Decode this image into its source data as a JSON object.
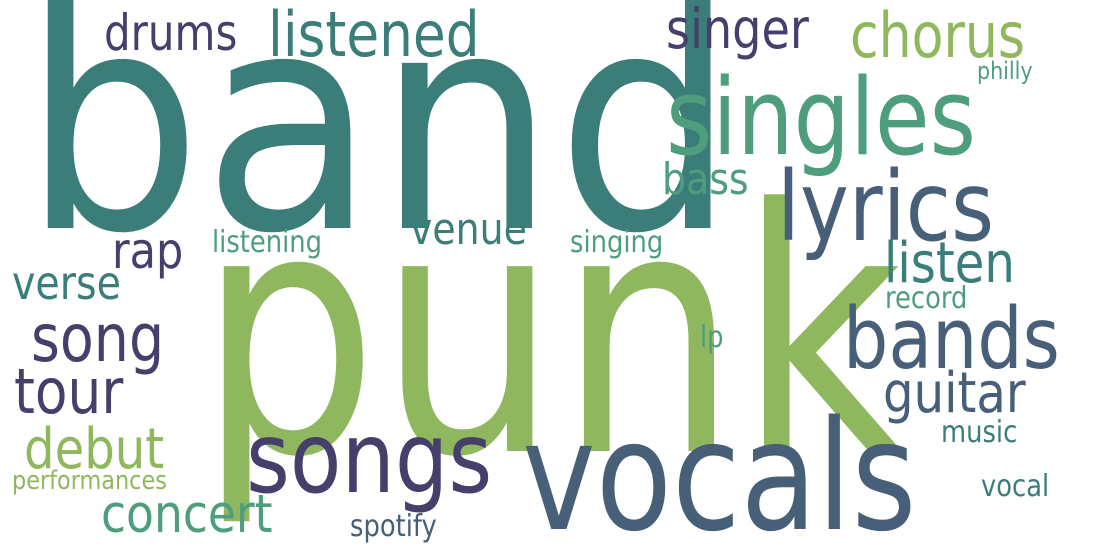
{
  "colors": {
    "teal": "#3b7d78",
    "green": "#8fb85e",
    "slate": "#475f78",
    "purple": "#463f6b",
    "mint": "#4e9e7d",
    "sage": "#7fb06b",
    "background": "#ffffff"
  },
  "words": {
    "band": {
      "text": "band",
      "color": "#3b7d78"
    },
    "punk": {
      "text": "punk",
      "color": "#8fb85e"
    },
    "vocals": {
      "text": "vocals",
      "color": "#475f78"
    },
    "singles": {
      "text": "singles",
      "color": "#4e9e7d"
    },
    "lyrics": {
      "text": "lyrics",
      "color": "#475f78"
    },
    "songs": {
      "text": "songs",
      "color": "#463f6b"
    },
    "bands": {
      "text": "bands",
      "color": "#475f78"
    },
    "listened": {
      "text": "listened",
      "color": "#3b7d78"
    },
    "chorus": {
      "text": "chorus",
      "color": "#8fb85e"
    },
    "singer": {
      "text": "singer",
      "color": "#463f6b"
    },
    "drums": {
      "text": "drums",
      "color": "#463f6b"
    },
    "song": {
      "text": "song",
      "color": "#463f6b"
    },
    "tour": {
      "text": "tour",
      "color": "#463f6b"
    },
    "guitar": {
      "text": "guitar",
      "color": "#475f78"
    },
    "listen": {
      "text": "listen",
      "color": "#3b7d78"
    },
    "concert": {
      "text": "concert",
      "color": "#4e9e7d"
    },
    "debut": {
      "text": "debut",
      "color": "#8fb85e"
    },
    "verse": {
      "text": "verse",
      "color": "#3b7d78"
    },
    "rap": {
      "text": "rap",
      "color": "#463f6b"
    },
    "venue": {
      "text": "venue",
      "color": "#3b7d78"
    },
    "bass": {
      "text": "bass",
      "color": "#4e9e7d"
    },
    "listening": {
      "text": "listening",
      "color": "#4e9e7d"
    },
    "singing": {
      "text": "singing",
      "color": "#4e9e7d"
    },
    "record": {
      "text": "record",
      "color": "#4e9e7d"
    },
    "music": {
      "text": "music",
      "color": "#3b7d78"
    },
    "vocal": {
      "text": "vocal",
      "color": "#3b7d78"
    },
    "spotify": {
      "text": "spotify",
      "color": "#475f78"
    },
    "performances": {
      "text": "performances",
      "color": "#8fb85e"
    },
    "lp": {
      "text": "lp",
      "color": "#4e9e7d"
    },
    "philly": {
      "text": "philly",
      "color": "#4e9e7d"
    }
  }
}
